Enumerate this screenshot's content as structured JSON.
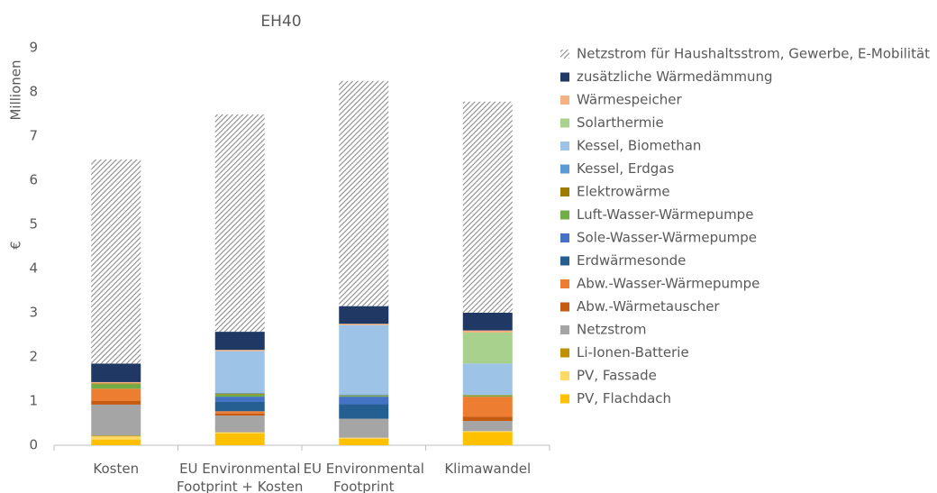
{
  "chart_data": {
    "type": "stacked_bar",
    "title": "EH40",
    "y_axis_label": "€",
    "y_axis_unit": "Millionen",
    "categories": [
      "Kosten",
      "EU Environmental Footprint + Kosten",
      "EU Environmental Footprint",
      "Klimawandel"
    ],
    "ylim": [
      0,
      9
    ],
    "yticks": [
      0,
      1,
      2,
      3,
      4,
      5,
      6,
      7,
      8,
      9
    ],
    "grid": false,
    "legend": "right",
    "series": [
      {
        "name": "PV, Flachdach",
        "color": "#ffc000",
        "values": [
          0.13,
          0.27,
          0.15,
          0.3
        ]
      },
      {
        "name": "PV, Fassade",
        "color": "#ffd966",
        "values": [
          0.07,
          0.02,
          0.02,
          0.02
        ]
      },
      {
        "name": "Li-Ionen-Batterie",
        "color": "#bf9000",
        "values": [
          0.02,
          0.01,
          0,
          0
        ]
      },
      {
        "name": "Netzstrom",
        "color": "#a5a5a5",
        "values": [
          0.7,
          0.37,
          0.43,
          0.23
        ]
      },
      {
        "name": "Abw.-Wärmetauscher",
        "color": "#c55a11",
        "values": [
          0.08,
          0.05,
          0,
          0.1
        ]
      },
      {
        "name": "Abw.-Wasser-Wärmepumpe",
        "color": "#ed7d31",
        "values": [
          0.28,
          0.05,
          0,
          0.45
        ]
      },
      {
        "name": "Erdwärmesonde",
        "color": "#255e91",
        "values": [
          0,
          0.21,
          0.33,
          0
        ]
      },
      {
        "name": "Sole-Wasser-Wärmepumpe",
        "color": "#4472c4",
        "values": [
          0,
          0.12,
          0.17,
          0
        ]
      },
      {
        "name": "Luft-Wasser-Wärmepumpe",
        "color": "#70ad47",
        "values": [
          0.1,
          0.05,
          0.02,
          0.03
        ]
      },
      {
        "name": "Elektrowärme",
        "color": "#9e7c00",
        "values": [
          0.02,
          0.02,
          0.01,
          0.01
        ]
      },
      {
        "name": "Kessel, Erdgas",
        "color": "#5b9bd5",
        "values": [
          0,
          0.02,
          0.02,
          0
        ]
      },
      {
        "name": "Kessel, Biomethan",
        "color": "#9dc3e6",
        "values": [
          0,
          0.94,
          1.57,
          0.71
        ]
      },
      {
        "name": "Solarthermie",
        "color": "#a9d18e",
        "values": [
          0,
          0,
          0,
          0.7
        ]
      },
      {
        "name": "Wärmespeicher",
        "color": "#f4b183",
        "values": [
          0.03,
          0.03,
          0.03,
          0.05
        ]
      },
      {
        "name": "zusätzliche Wärmedämmung",
        "color": "#203864",
        "values": [
          0.42,
          0.41,
          0.4,
          0.4
        ]
      },
      {
        "name": "Netzstrom für Haushaltsstrom, Gewerbe, E-Mobilität",
        "color": "#a6a6a6",
        "pattern": "hatch",
        "values": [
          4.62,
          4.92,
          5.1,
          4.78
        ]
      }
    ]
  }
}
